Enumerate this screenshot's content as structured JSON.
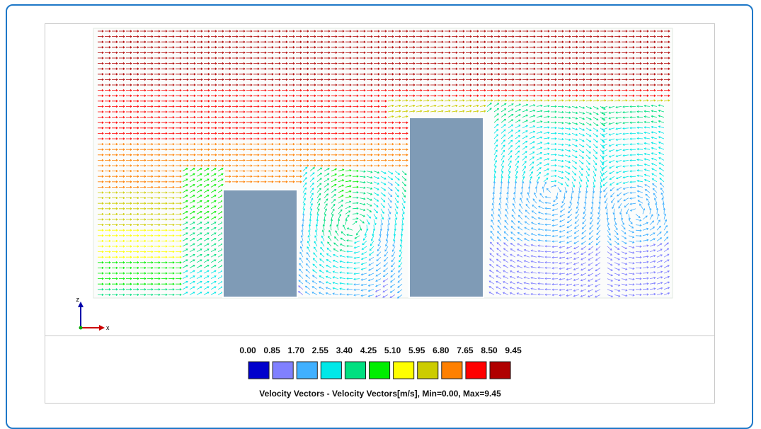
{
  "axes": {
    "z": "z",
    "x": "x"
  },
  "legend": {
    "labels": [
      "0.00",
      "0.85",
      "1.70",
      "2.55",
      "3.40",
      "4.25",
      "5.10",
      "5.95",
      "6.80",
      "7.65",
      "8.50",
      "9.45"
    ],
    "colors": [
      "#0000cc",
      "#8080ff",
      "#40b0ff",
      "#00e8e8",
      "#00e080",
      "#00ee00",
      "#ffff00",
      "#cccc00",
      "#ff8000",
      "#ff0000",
      "#b00000"
    ],
    "caption": "Velocity Vectors  - Velocity Vectors[m/s], Min=0.00, Max=9.45"
  }
}
